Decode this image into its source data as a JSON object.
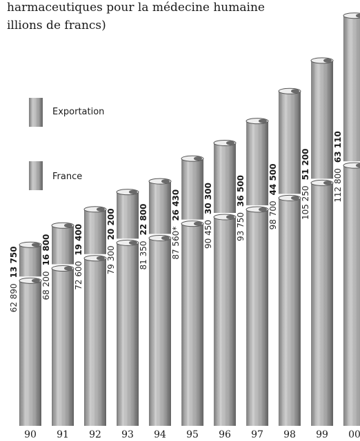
{
  "title_line1": "harmaceutiques pour la médecine humaine",
  "title_line2": "illions de francs)",
  "colors": {
    "france": "#9c9c9c",
    "exportation": "#c6c6c6",
    "dark": "#5a5a5a",
    "light": "#ededed"
  },
  "chart_data": {
    "type": "bar",
    "stacked": true,
    "categories": [
      "90",
      "91",
      "92",
      "93",
      "94",
      "95",
      "96",
      "97",
      "98",
      "99",
      "00"
    ],
    "series": [
      {
        "name": "France",
        "values": [
          62890,
          68200,
          72600,
          79300,
          81350,
          87560,
          90450,
          93750,
          98700,
          105250,
          112800
        ],
        "labels": [
          "62 890",
          "68 200",
          "72 600",
          "79 300",
          "81 350",
          "87 560*",
          "90 450",
          "93 750",
          "98 700",
          "105 250",
          "112 800"
        ]
      },
      {
        "name": "Exportation",
        "values": [
          13750,
          16800,
          19400,
          20200,
          22800,
          26430,
          30300,
          36500,
          44500,
          51200,
          63110
        ],
        "labels": [
          "13 750",
          "16 800",
          "19 400",
          "20 200",
          "22 800",
          "26 430",
          "30 300",
          "36 500",
          "44 500",
          "51 200",
          "63 110"
        ]
      }
    ],
    "legend": [
      "Exportation",
      "France"
    ],
    "legend_position": "left",
    "grid": false
  }
}
